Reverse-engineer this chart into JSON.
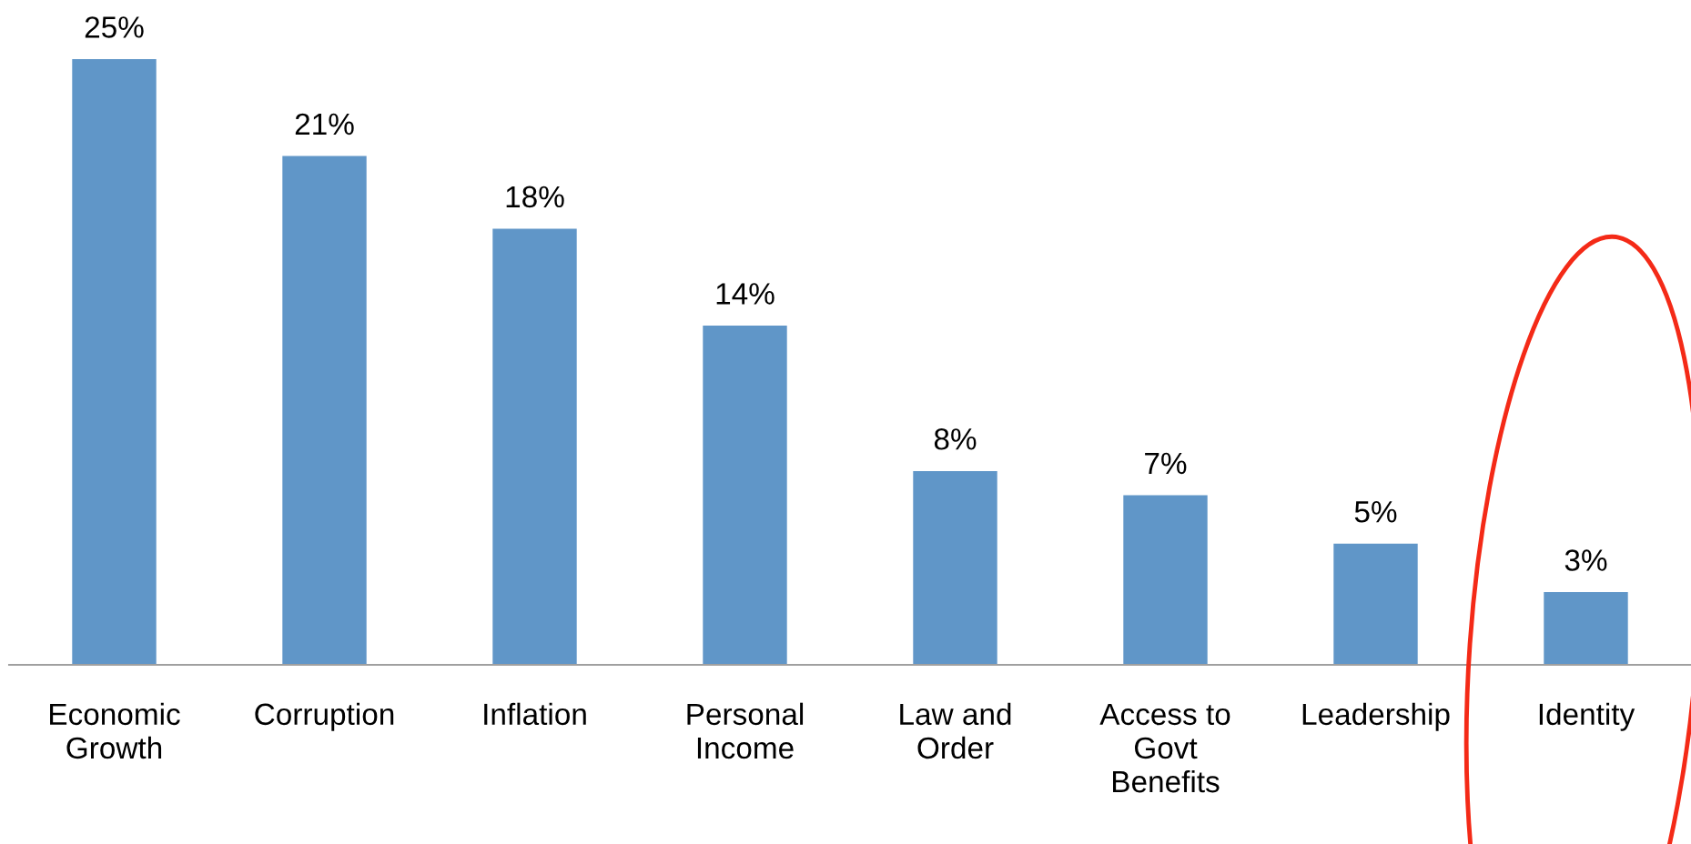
{
  "chart_data": {
    "type": "bar",
    "categories": [
      "Economic\nGrowth",
      "Corruption",
      "Inflation",
      "Personal\nIncome",
      "Law and\nOrder",
      "Access to\nGovt\nBenefits",
      "Leadership",
      "Identity"
    ],
    "values": [
      25,
      21,
      18,
      14,
      8,
      7,
      5,
      3
    ],
    "value_labels": [
      "25%",
      "21%",
      "18%",
      "14%",
      "8%",
      "7%",
      "5%",
      "3%"
    ],
    "color": "#6096c8",
    "grid": false,
    "legend": false,
    "tick_labels": "x"
  }
}
